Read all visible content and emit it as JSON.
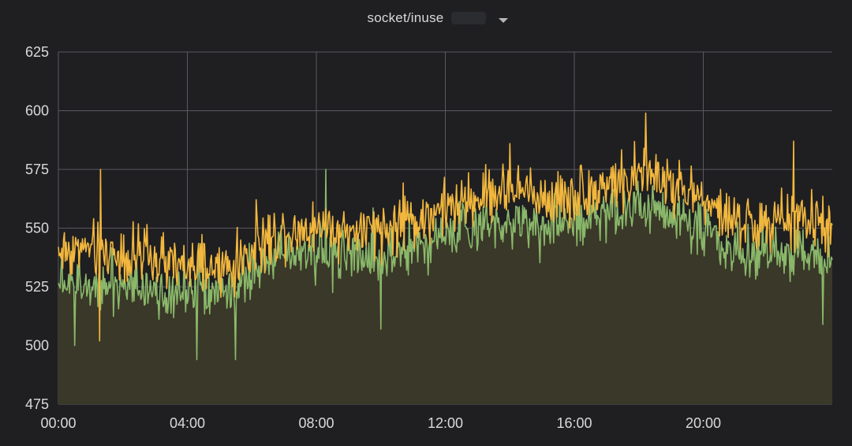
{
  "panel": {
    "title": "socket/inuse"
  },
  "colors": {
    "background": "#1f1f22",
    "grid": "#5a5a5e",
    "series_yellow": "#f2b73d",
    "series_green": "#8ab86a",
    "fill": "#3a3828",
    "text": "#d8d9da"
  },
  "icons": {
    "title_dropdown": "caret-down-icon"
  },
  "chart_data": {
    "type": "line",
    "title": "socket/inuse",
    "xlabel": "",
    "ylabel": "",
    "x_tick_labels": [
      "00:00",
      "04:00",
      "08:00",
      "12:00",
      "16:00",
      "20:00"
    ],
    "x_tick_hours": [
      0,
      4,
      8,
      12,
      16,
      20
    ],
    "x_range_hours": [
      0,
      24
    ],
    "y_ticks": [
      475,
      500,
      525,
      550,
      575,
      600,
      625
    ],
    "ylim": [
      475,
      625
    ],
    "grid": true,
    "legend": "none",
    "series": [
      {
        "name": "series-yellow",
        "color": "#f2b73d",
        "x_hours": [
          0,
          0.5,
          1,
          1.5,
          2,
          2.5,
          3,
          3.5,
          4,
          4.5,
          5,
          5.5,
          6,
          6.5,
          7,
          7.5,
          8,
          8.5,
          9,
          9.5,
          10,
          10.5,
          11,
          11.5,
          12,
          12.5,
          13,
          13.5,
          14,
          14.5,
          15,
          15.5,
          16,
          16.5,
          17,
          17.5,
          18,
          18.5,
          19,
          19.5,
          20,
          20.5,
          21,
          21.5,
          22,
          22.5,
          23,
          23.5,
          24
        ],
        "mean": [
          540,
          541,
          541,
          540,
          539,
          538,
          536,
          534,
          533,
          533,
          532,
          534,
          540,
          545,
          549,
          550,
          551,
          550,
          549,
          548,
          548,
          551,
          553,
          556,
          558,
          560,
          563,
          565,
          566,
          565,
          563,
          563,
          564,
          566,
          568,
          570,
          573,
          572,
          569,
          566,
          562,
          556,
          553,
          552,
          551,
          553,
          554,
          552,
          549
        ],
        "noise_amplitude": 11,
        "peaks": [
          {
            "x_hours": 1.3,
            "value": 575
          },
          {
            "x_hours": 1.27,
            "value": 502
          },
          {
            "x_hours": 18.2,
            "value": 599
          },
          {
            "x_hours": 14.0,
            "value": 586
          },
          {
            "x_hours": 22.8,
            "value": 587
          }
        ]
      },
      {
        "name": "series-green",
        "color": "#8ab86a",
        "x_hours": [
          0,
          0.5,
          1,
          1.5,
          2,
          2.5,
          3,
          3.5,
          4,
          4.5,
          5,
          5.5,
          6,
          6.5,
          7,
          7.5,
          8,
          8.5,
          9,
          9.5,
          10,
          10.5,
          11,
          11.5,
          12,
          12.5,
          13,
          13.5,
          14,
          14.5,
          15,
          15.5,
          16,
          16.5,
          17,
          17.5,
          18,
          18.5,
          19,
          19.5,
          20,
          20.5,
          21,
          21.5,
          22,
          22.5,
          23,
          23.5,
          24
        ],
        "mean": [
          527,
          528,
          528,
          527,
          526,
          526,
          524,
          522,
          522,
          522,
          521,
          523,
          530,
          535,
          539,
          540,
          540,
          540,
          539,
          538,
          538,
          541,
          543,
          545,
          547,
          549,
          551,
          553,
          554,
          553,
          551,
          551,
          552,
          554,
          556,
          558,
          559,
          558,
          556,
          553,
          549,
          544,
          540,
          539,
          538,
          540,
          541,
          539,
          536
        ],
        "noise_amplitude": 10,
        "peaks": [
          {
            "x_hours": 0.5,
            "value": 500
          },
          {
            "x_hours": 4.3,
            "value": 494
          },
          {
            "x_hours": 5.5,
            "value": 494
          },
          {
            "x_hours": 8.3,
            "value": 575
          },
          {
            "x_hours": 10.0,
            "value": 507
          },
          {
            "x_hours": 23.7,
            "value": 509
          }
        ]
      }
    ]
  }
}
